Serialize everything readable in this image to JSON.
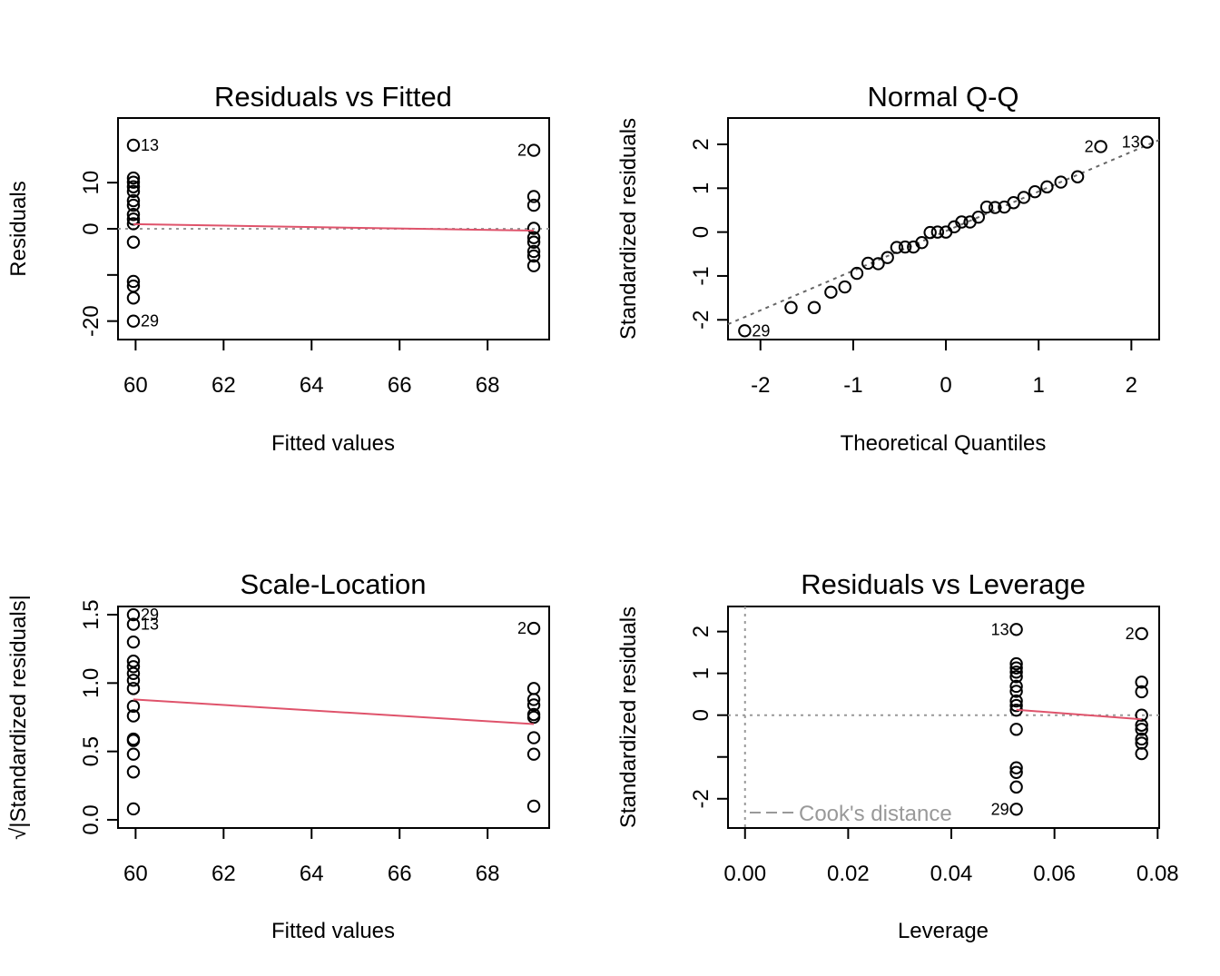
{
  "colors": {
    "smooth": "#DF536B",
    "ref": "#999999",
    "qqline": "#666666",
    "point": "#000000"
  },
  "chart_data": [
    {
      "id": "rvf",
      "type": "scatter",
      "title": "Residuals vs Fitted",
      "xlabel": "Fitted values",
      "ylabel": "Residuals",
      "xlim": [
        59.6,
        69.4
      ],
      "ylim": [
        -24,
        24
      ],
      "xticks": [
        {
          "v": 60,
          "t": "60"
        },
        {
          "v": 62,
          "t": "62"
        },
        {
          "v": 64,
          "t": "64"
        },
        {
          "v": 66,
          "t": "66"
        },
        {
          "v": 68,
          "t": "68"
        }
      ],
      "yticks": [
        {
          "v": -20,
          "t": "-20"
        },
        {
          "v": -10,
          "t": ""
        },
        {
          "v": 0,
          "t": "0"
        },
        {
          "v": 10,
          "t": "10"
        }
      ],
      "hline": 0,
      "smooth": [
        [
          59.95,
          1.0
        ],
        [
          69.05,
          -0.4
        ]
      ],
      "points": [
        [
          59.95,
          18.1
        ],
        [
          59.95,
          11.0
        ],
        [
          59.95,
          10.1
        ],
        [
          59.95,
          9.1
        ],
        [
          59.95,
          8.1
        ],
        [
          59.95,
          6.1
        ],
        [
          59.95,
          5.1
        ],
        [
          59.95,
          3.1
        ],
        [
          59.95,
          2.1
        ],
        [
          59.95,
          1.1
        ],
        [
          59.95,
          -2.9
        ],
        [
          59.95,
          -11.4
        ],
        [
          59.95,
          -12.4
        ],
        [
          59.95,
          -15.0
        ],
        [
          59.95,
          -20.0
        ],
        [
          69.05,
          17.0
        ],
        [
          69.05,
          7.0
        ],
        [
          69.05,
          5.1
        ],
        [
          69.05,
          0.1
        ],
        [
          69.05,
          -1.9
        ],
        [
          69.05,
          -2.9
        ],
        [
          69.05,
          -4.9
        ],
        [
          69.05,
          -5.9
        ],
        [
          69.05,
          -8.0
        ]
      ],
      "labels": [
        {
          "x": 59.95,
          "y": 18.1,
          "t": "13",
          "side": "right"
        },
        {
          "x": 69.05,
          "y": 17.0,
          "t": "2",
          "side": "left"
        },
        {
          "x": 59.95,
          "y": -20.0,
          "t": "29",
          "side": "right"
        }
      ]
    },
    {
      "id": "qq",
      "type": "scatter",
      "title": "Normal Q-Q",
      "xlabel": "Theoretical Quantiles",
      "ylabel": "Standardized residuals",
      "xlim": [
        -2.35,
        2.3
      ],
      "ylim": [
        -2.45,
        2.6
      ],
      "xticks": [
        {
          "v": -2,
          "t": "-2"
        },
        {
          "v": -1,
          "t": "-1"
        },
        {
          "v": 0,
          "t": "0"
        },
        {
          "v": 1,
          "t": "1"
        },
        {
          "v": 2,
          "t": "2"
        }
      ],
      "yticks": [
        {
          "v": -2,
          "t": "-2"
        },
        {
          "v": -1,
          "t": "-1"
        },
        {
          "v": 0,
          "t": "0"
        },
        {
          "v": 1,
          "t": "1"
        },
        {
          "v": 2,
          "t": "2"
        }
      ],
      "qqline": [
        [
          -2.35,
          -2.1
        ],
        [
          2.3,
          2.1
        ]
      ],
      "points": [
        [
          -2.17,
          -2.25
        ],
        [
          -1.67,
          -1.72
        ],
        [
          -1.42,
          -1.72
        ],
        [
          -1.24,
          -1.37
        ],
        [
          -1.09,
          -1.25
        ],
        [
          -0.96,
          -0.94
        ],
        [
          -0.84,
          -0.71
        ],
        [
          -0.73,
          -0.72
        ],
        [
          -0.63,
          -0.58
        ],
        [
          -0.53,
          -0.35
        ],
        [
          -0.44,
          -0.34
        ],
        [
          -0.35,
          -0.34
        ],
        [
          -0.26,
          -0.24
        ],
        [
          -0.17,
          -0.01
        ],
        [
          -0.09,
          0.0
        ],
        [
          0.0,
          0.0
        ],
        [
          0.09,
          0.12
        ],
        [
          0.17,
          0.23
        ],
        [
          0.26,
          0.23
        ],
        [
          0.35,
          0.34
        ],
        [
          0.44,
          0.57
        ],
        [
          0.53,
          0.56
        ],
        [
          0.63,
          0.57
        ],
        [
          0.73,
          0.67
        ],
        [
          0.84,
          0.79
        ],
        [
          0.96,
          0.92
        ],
        [
          1.09,
          1.03
        ],
        [
          1.24,
          1.14
        ],
        [
          1.42,
          1.26
        ],
        [
          1.67,
          1.95
        ],
        [
          2.17,
          2.05
        ]
      ],
      "labels": [
        {
          "x": 2.17,
          "y": 2.05,
          "t": "13",
          "side": "left"
        },
        {
          "x": 1.67,
          "y": 1.95,
          "t": "2",
          "side": "left"
        },
        {
          "x": -2.17,
          "y": -2.25,
          "t": "29",
          "side": "right"
        }
      ]
    },
    {
      "id": "sl",
      "type": "scatter",
      "title": "Scale-Location",
      "xlabel": "Fitted values",
      "ylabel": "√|Standardized residuals|",
      "xlim": [
        59.6,
        69.4
      ],
      "ylim": [
        -0.06,
        1.56
      ],
      "xticks": [
        {
          "v": 60,
          "t": "60"
        },
        {
          "v": 62,
          "t": "62"
        },
        {
          "v": 64,
          "t": "64"
        },
        {
          "v": 66,
          "t": "66"
        },
        {
          "v": 68,
          "t": "68"
        }
      ],
      "yticks": [
        {
          "v": 0.0,
          "t": "0.0"
        },
        {
          "v": 0.5,
          "t": "0.5"
        },
        {
          "v": 1.0,
          "t": "1.0"
        },
        {
          "v": 1.5,
          "t": "1.5"
        }
      ],
      "smooth": [
        [
          59.95,
          0.88
        ],
        [
          69.05,
          0.7
        ]
      ],
      "points": [
        [
          59.95,
          1.5
        ],
        [
          59.95,
          1.43
        ],
        [
          59.95,
          1.3
        ],
        [
          59.95,
          1.16
        ],
        [
          59.95,
          1.12
        ],
        [
          59.95,
          1.07
        ],
        [
          59.95,
          1.02
        ],
        [
          59.95,
          0.96
        ],
        [
          59.95,
          0.83
        ],
        [
          59.95,
          0.76
        ],
        [
          59.95,
          0.59
        ],
        [
          59.95,
          0.58
        ],
        [
          59.95,
          0.48
        ],
        [
          59.95,
          0.35
        ],
        [
          59.95,
          0.08
        ],
        [
          69.05,
          1.4
        ],
        [
          69.05,
          0.96
        ],
        [
          69.05,
          0.88
        ],
        [
          69.05,
          0.84
        ],
        [
          69.05,
          0.77
        ],
        [
          69.05,
          0.75
        ],
        [
          69.05,
          0.6
        ],
        [
          69.05,
          0.48
        ],
        [
          69.05,
          0.1
        ]
      ],
      "labels": [
        {
          "x": 59.95,
          "y": 1.5,
          "t": "29",
          "side": "right"
        },
        {
          "x": 59.95,
          "y": 1.43,
          "t": "13",
          "side": "right"
        },
        {
          "x": 69.05,
          "y": 1.4,
          "t": "2",
          "side": "left"
        }
      ]
    },
    {
      "id": "rvl",
      "type": "scatter",
      "title": "Residuals vs Leverage",
      "xlabel": "Leverage",
      "ylabel": "Standardized residuals",
      "xlim": [
        -0.0033,
        0.0803
      ],
      "ylim": [
        -2.7,
        2.6
      ],
      "xticks": [
        {
          "v": 0.0,
          "t": "0.00"
        },
        {
          "v": 0.02,
          "t": "0.02"
        },
        {
          "v": 0.04,
          "t": "0.04"
        },
        {
          "v": 0.06,
          "t": "0.06"
        },
        {
          "v": 0.08,
          "t": "0.08"
        }
      ],
      "yticks": [
        {
          "v": -2,
          "t": "-2"
        },
        {
          "v": -1,
          "t": ""
        },
        {
          "v": 0,
          "t": "0"
        },
        {
          "v": 1,
          "t": "1"
        },
        {
          "v": 2,
          "t": "2"
        }
      ],
      "hline": 0,
      "vline": 0,
      "smooth": [
        [
          0.0526,
          0.13
        ],
        [
          0.0769,
          -0.1
        ]
      ],
      "points": [
        [
          0.0526,
          2.05
        ],
        [
          0.0526,
          1.23
        ],
        [
          0.0526,
          1.13
        ],
        [
          0.0526,
          1.03
        ],
        [
          0.0526,
          0.92
        ],
        [
          0.0526,
          0.69
        ],
        [
          0.0526,
          0.57
        ],
        [
          0.0526,
          0.34
        ],
        [
          0.0526,
          0.23
        ],
        [
          0.0526,
          0.12
        ],
        [
          0.0526,
          -0.34
        ],
        [
          0.0526,
          -1.26
        ],
        [
          0.0526,
          -1.37
        ],
        [
          0.0526,
          -1.72
        ],
        [
          0.0526,
          -2.25
        ],
        [
          0.0769,
          1.95
        ],
        [
          0.0769,
          0.79
        ],
        [
          0.0769,
          0.56
        ],
        [
          0.0769,
          0.0
        ],
        [
          0.0769,
          -0.24
        ],
        [
          0.0769,
          -0.34
        ],
        [
          0.0769,
          -0.57
        ],
        [
          0.0769,
          -0.67
        ],
        [
          0.0769,
          -0.92
        ]
      ],
      "labels": [
        {
          "x": 0.0526,
          "y": 2.05,
          "t": "13",
          "side": "left"
        },
        {
          "x": 0.0769,
          "y": 1.95,
          "t": "2",
          "side": "left"
        },
        {
          "x": 0.0526,
          "y": -2.25,
          "t": "29",
          "side": "left"
        }
      ],
      "legend": {
        "text": "Cook's distance",
        "position": "bottom-left"
      }
    }
  ]
}
